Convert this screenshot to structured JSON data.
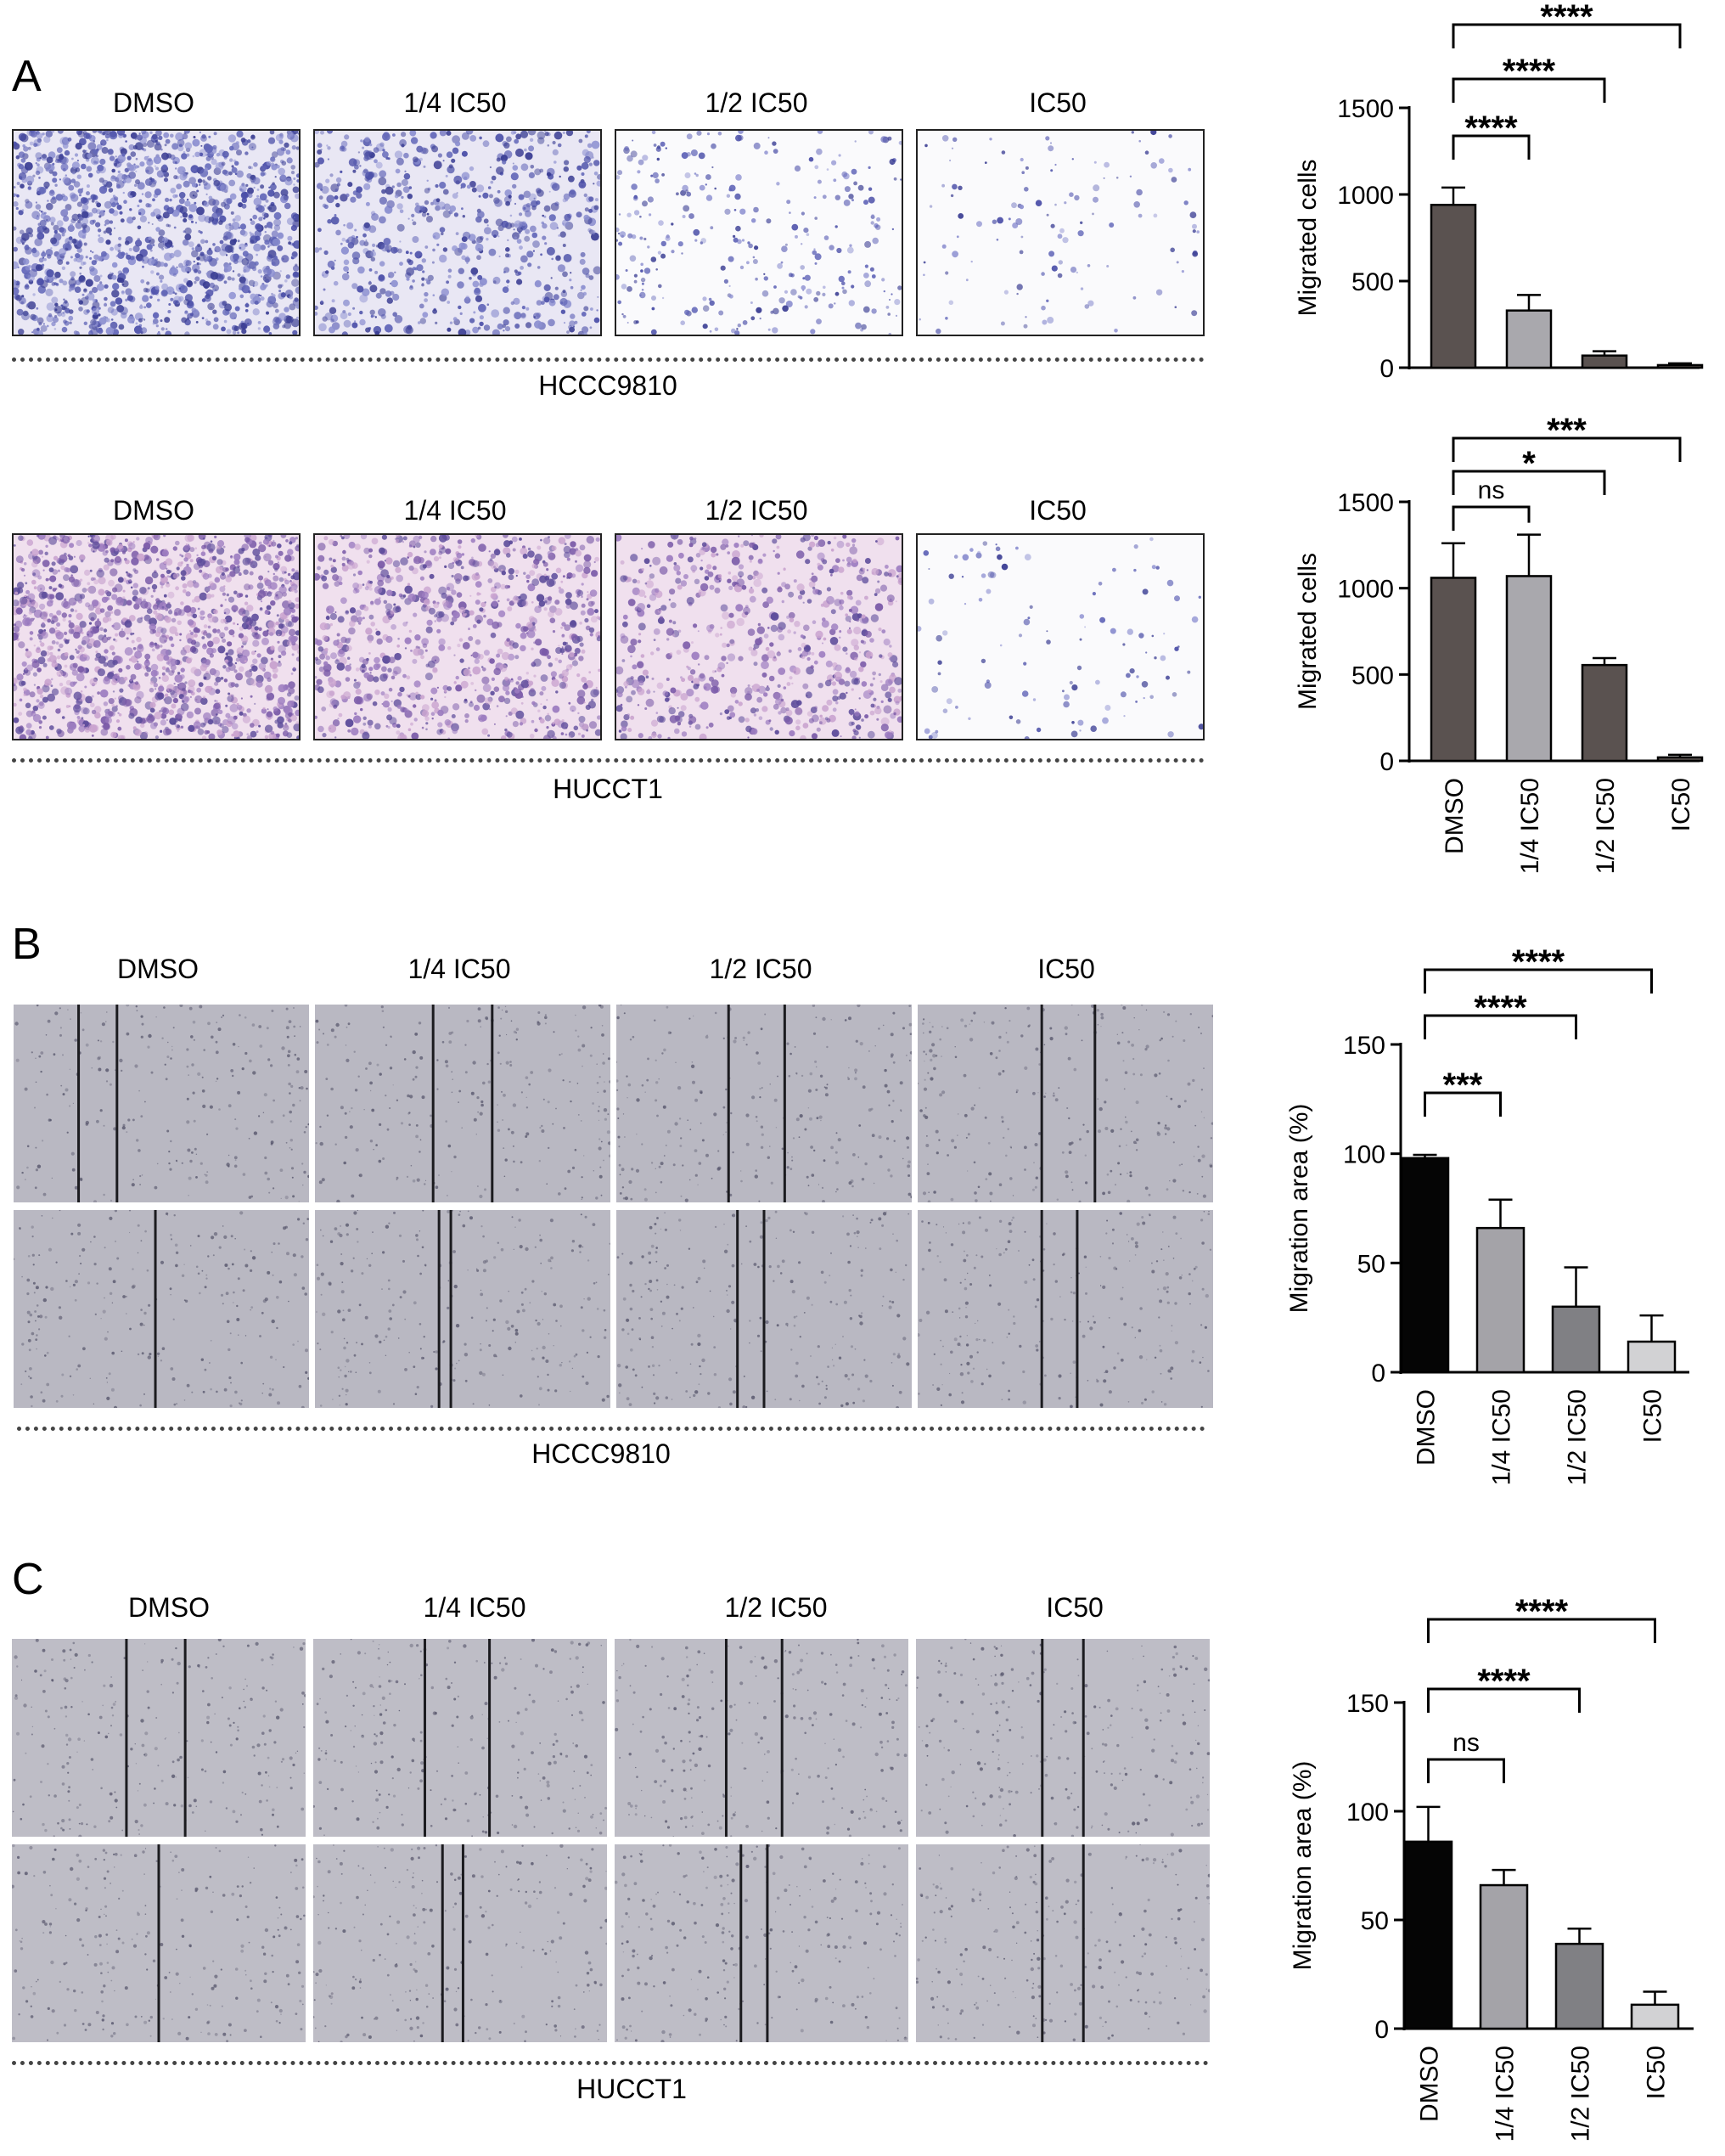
{
  "panels": {
    "A": {
      "letter": "A",
      "top_conditions": [
        "DMSO",
        "1/4 IC50",
        "1/2 IC50",
        "IC50"
      ],
      "top_cell_line": "HCCC9810",
      "bottom_conditions": [
        "DMSO",
        "1/4 IC50",
        "1/2 IC50",
        "IC50"
      ],
      "bottom_cell_line": "HUCCT1"
    },
    "B": {
      "letter": "B",
      "conditions": [
        "DMSO",
        "1/4 IC50",
        "1/2 IC50",
        "IC50"
      ],
      "cell_line": "HCCC9810"
    },
    "C": {
      "letter": "C",
      "conditions": [
        "DMSO",
        "1/4 IC50",
        "1/2 IC50",
        "IC50"
      ],
      "cell_line": "HUCCT1"
    }
  },
  "chart_data": [
    {
      "id": "A-top",
      "type": "bar",
      "categories": [
        "DMSO",
        "1/4 IC50",
        "1/2 IC50",
        "IC50"
      ],
      "show_category_labels": false,
      "values": [
        940,
        330,
        70,
        15
      ],
      "errors": [
        100,
        90,
        25,
        10
      ],
      "ylabel": "Migrated cells",
      "ylim": [
        0,
        1500
      ],
      "yticks": [
        0,
        500,
        1000,
        1500
      ],
      "colors": [
        "#5a5250",
        "#a9a8ad",
        "#5a5250",
        "#5a5250"
      ],
      "significance": [
        {
          "from": "DMSO",
          "to": "1/4 IC50",
          "label": "****"
        },
        {
          "from": "DMSO",
          "to": "1/2 IC50",
          "label": "****"
        },
        {
          "from": "DMSO",
          "to": "IC50",
          "label": "****"
        }
      ]
    },
    {
      "id": "A-bottom",
      "type": "bar",
      "categories": [
        "DMSO",
        "1/4 IC50",
        "1/2 IC50",
        "IC50"
      ],
      "show_category_labels": true,
      "values": [
        1060,
        1070,
        555,
        20
      ],
      "errors": [
        200,
        240,
        40,
        15
      ],
      "ylabel": "Migrated cells",
      "ylim": [
        0,
        1500
      ],
      "yticks": [
        0,
        500,
        1000,
        1500
      ],
      "colors": [
        "#5a5250",
        "#a9a8ad",
        "#5a5250",
        "#5a5250"
      ],
      "significance": [
        {
          "from": "DMSO",
          "to": "1/4 IC50",
          "label": "ns"
        },
        {
          "from": "DMSO",
          "to": "1/2 IC50",
          "label": "*"
        },
        {
          "from": "DMSO",
          "to": "IC50",
          "label": "***"
        }
      ]
    },
    {
      "id": "B",
      "type": "bar",
      "categories": [
        "DMSO",
        "1/4 IC50",
        "1/2 IC50",
        "IC50"
      ],
      "show_category_labels": true,
      "values": [
        98,
        66,
        30,
        14
      ],
      "errors": [
        1.5,
        13,
        18,
        12
      ],
      "ylabel": "Migration area (%)",
      "ylim": [
        0,
        150
      ],
      "yticks": [
        0,
        50,
        100,
        150
      ],
      "colors": [
        "#050505",
        "#a4a3a8",
        "#808084",
        "#d2d2d4"
      ],
      "significance": [
        {
          "from": "DMSO",
          "to": "1/4 IC50",
          "label": "***"
        },
        {
          "from": "DMSO",
          "to": "1/2 IC50",
          "label": "****"
        },
        {
          "from": "DMSO",
          "to": "IC50",
          "label": "****"
        }
      ]
    },
    {
      "id": "C",
      "type": "bar",
      "categories": [
        "DMSO",
        "1/4 IC50",
        "1/2 IC50",
        "IC50"
      ],
      "show_category_labels": true,
      "values": [
        86,
        66,
        39,
        11
      ],
      "errors": [
        16,
        7,
        7,
        6
      ],
      "ylabel": "Migration area (%)",
      "ylim": [
        0,
        150
      ],
      "yticks": [
        0,
        50,
        100,
        150
      ],
      "colors": [
        "#050505",
        "#a4a3a8",
        "#808084",
        "#d2d2d4"
      ],
      "significance": [
        {
          "from": "DMSO",
          "to": "1/4 IC50",
          "label": "ns"
        },
        {
          "from": "DMSO",
          "to": "1/2 IC50",
          "label": "****"
        },
        {
          "from": "DMSO",
          "to": "IC50",
          "label": "****"
        }
      ]
    }
  ]
}
